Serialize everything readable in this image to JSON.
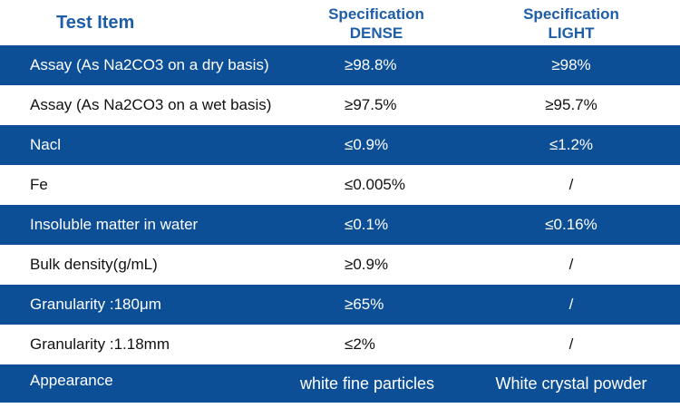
{
  "header": {
    "test_item": "Test Item",
    "spec_dense_line1": "Specification",
    "spec_dense_line2": "DENSE",
    "spec_light_line1": "Specification",
    "spec_light_line2": "LIGHT"
  },
  "colors": {
    "header_text": "#1e5ea8",
    "dark_row": "#0d4f96",
    "light_row": "#ffffff"
  },
  "rows": [
    {
      "item": "Assay (As Na2CO3 on a dry basis)",
      "dense": "≥98.8%",
      "light": "≥98%"
    },
    {
      "item": "Assay (As Na2CO3 on a wet basis)",
      "dense": "≥97.5%",
      "light": "≥95.7%"
    },
    {
      "item": "Nacl",
      "dense": "≤0.9%",
      "light": "≤1.2%"
    },
    {
      "item": "Fe",
      "dense": "≤0.005%",
      "light": "/"
    },
    {
      "item": "Insoluble matter in water",
      "dense": "≤0.1%",
      "light": "≤0.16%"
    },
    {
      "item": "Bulk density(g/mL)",
      "dense": "≥0.9%",
      "light": "/"
    },
    {
      "item": "Granularity :180μm",
      "dense": "≥65%",
      "light": "/"
    },
    {
      "item": "Granularity :1.18mm",
      "dense": "≤2%",
      "light": "/"
    },
    {
      "item": "Appearance",
      "dense": "white fine particles",
      "light": "White crystal powder"
    }
  ]
}
